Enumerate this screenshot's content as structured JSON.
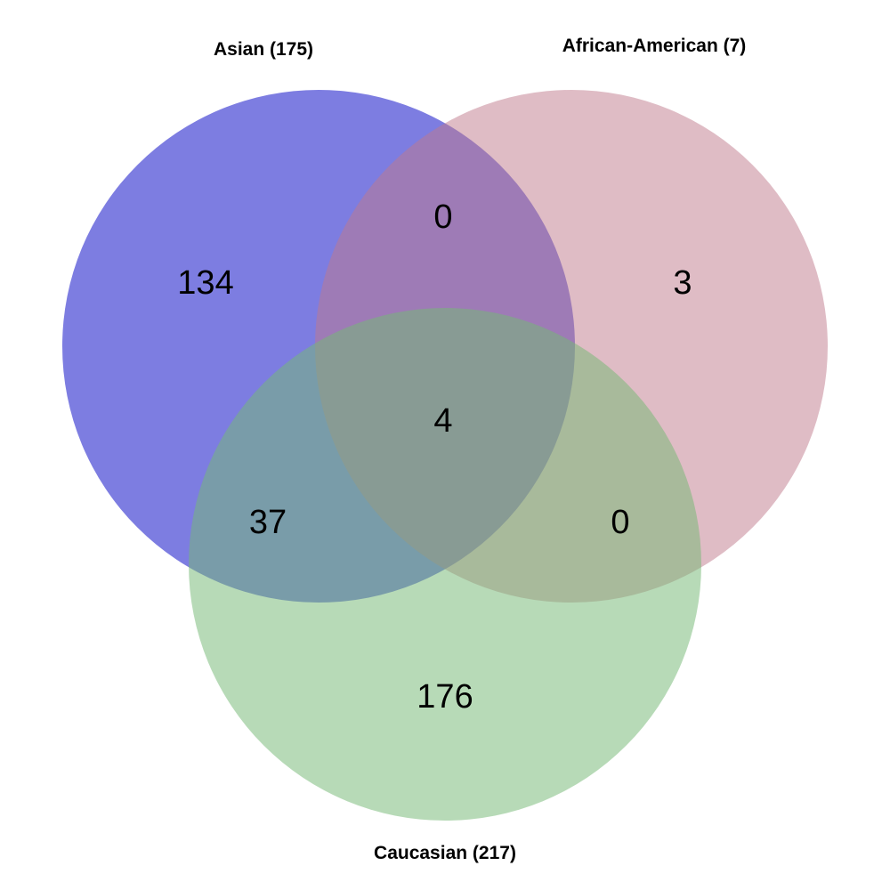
{
  "sets": [
    {
      "id": "asian",
      "label": "Asian (175)",
      "color": "#1212c8"
    },
    {
      "id": "african-american",
      "label": "African-American (7)",
      "color": "#bf7a8c"
    },
    {
      "id": "caucasian",
      "label": "Caucasian (217)",
      "color": "#74b874"
    }
  ],
  "regions": {
    "asian_only": "134",
    "african_american_only": "3",
    "caucasian_only": "176",
    "asian_african_american": "0",
    "asian_caucasian": "37",
    "african_american_caucasian": "0",
    "all_three": "4"
  }
}
